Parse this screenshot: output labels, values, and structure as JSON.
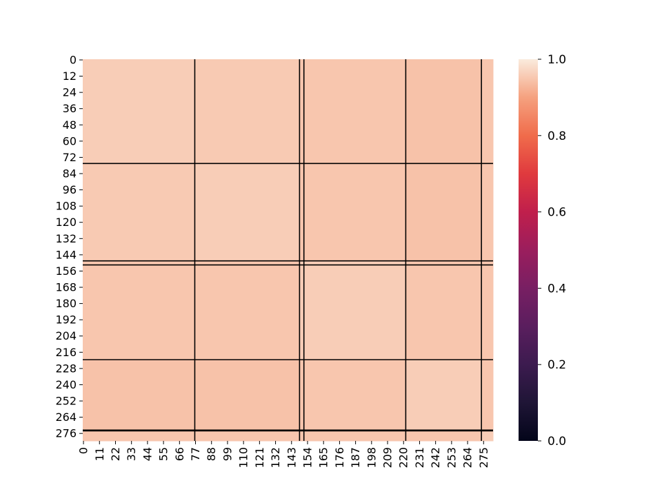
{
  "chart_data": {
    "type": "heatmap",
    "title": "",
    "xlabel": "",
    "ylabel": "",
    "n_rows": 282,
    "n_cols": 282,
    "x_tick_labels": [
      "0",
      "11",
      "22",
      "33",
      "44",
      "55",
      "66",
      "77",
      "88",
      "99",
      "110",
      "121",
      "132",
      "143",
      "154",
      "165",
      "176",
      "187",
      "198",
      "209",
      "220",
      "231",
      "242",
      "253",
      "264",
      "275"
    ],
    "y_tick_labels": [
      "0",
      "12",
      "24",
      "36",
      "48",
      "60",
      "72",
      "84",
      "96",
      "108",
      "120",
      "132",
      "144",
      "156",
      "168",
      "180",
      "192",
      "204",
      "216",
      "228",
      "240",
      "252",
      "264",
      "276"
    ],
    "boundaries": [
      0,
      77,
      149,
      152,
      222,
      274,
      282
    ],
    "block_values": [
      [
        0.96,
        0.955,
        0.95,
        0.95,
        0.945,
        0.95
      ],
      [
        0.955,
        0.96,
        0.95,
        0.95,
        0.945,
        0.95
      ],
      [
        0.95,
        0.95,
        0.96,
        0.96,
        0.95,
        0.95
      ],
      [
        0.95,
        0.95,
        0.96,
        0.96,
        0.95,
        0.95
      ],
      [
        0.945,
        0.945,
        0.95,
        0.95,
        0.96,
        0.95
      ],
      [
        0.95,
        0.95,
        0.95,
        0.95,
        0.95,
        0.96
      ]
    ],
    "colorbar": {
      "min": 0.0,
      "max": 1.0,
      "ticks": [
        "0.0",
        "0.2",
        "0.4",
        "0.6",
        "0.8",
        "1.0"
      ],
      "colormap": "rocket"
    },
    "grid": false
  }
}
